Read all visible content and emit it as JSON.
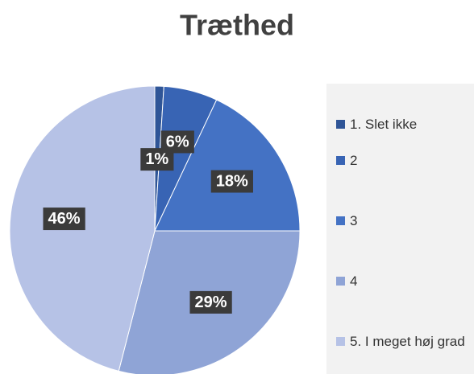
{
  "chart_data": {
    "type": "pie",
    "title": "Træthed",
    "categories": [
      "1. Slet ikke",
      "2",
      "3",
      "4",
      "5. I meget høj grad"
    ],
    "values": [
      1,
      6,
      18,
      29,
      46
    ],
    "value_labels": [
      "1%",
      "6%",
      "18%",
      "29%",
      "46%"
    ],
    "colors": [
      "#2f5597",
      "#3864b4",
      "#4472c4",
      "#8fa4d6",
      "#b6c2e6"
    ],
    "legend": "right"
  }
}
